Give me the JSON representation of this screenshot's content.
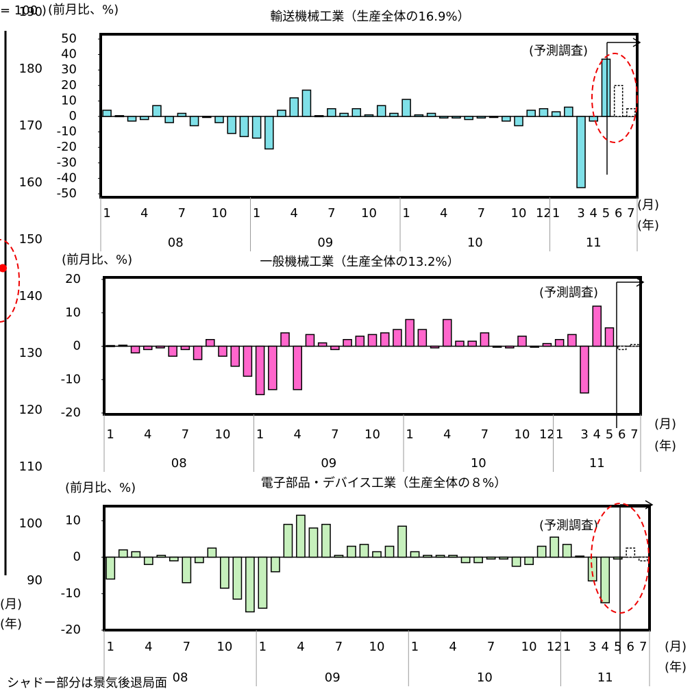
{
  "chart_data": [
    {
      "type": "line",
      "title": "= 100 )",
      "ylim": [
        90,
        190
      ],
      "yticks": [
        90,
        100,
        110,
        120,
        130,
        140,
        150,
        160,
        170,
        180,
        190
      ],
      "x_label": "(月)",
      "x_group_label": "(年)",
      "series": [
        {
          "color": "#ff0000",
          "values": [
            145
          ]
        }
      ]
    },
    {
      "type": "bar",
      "title": "輸送機械工業（生産全体の16.9%）",
      "y_label": "(前月比、%)",
      "note": "(予測調査)",
      "ylim": [
        -50,
        50
      ],
      "yticks": [
        -50,
        -40,
        -30,
        -20,
        -10,
        0,
        10,
        20,
        30,
        40,
        50
      ],
      "x_label": "(月)",
      "x_group_label": "(年)",
      "years": [
        "08",
        "09",
        "10",
        "11"
      ],
      "categories": [
        "1",
        null,
        null,
        "4",
        null,
        null,
        "7",
        null,
        null,
        "10",
        null,
        null,
        "1",
        null,
        null,
        "4",
        null,
        null,
        "7",
        null,
        null,
        "10",
        null,
        null,
        "1",
        null,
        null,
        "4",
        null,
        null,
        "7",
        null,
        null,
        "10",
        null,
        "12",
        "1",
        null,
        "3",
        "4",
        "5",
        "6",
        "7"
      ],
      "series": [
        {
          "color": "#7fe0e8",
          "values": [
            4,
            0.5,
            -3,
            -2,
            7,
            -4,
            2,
            -6,
            0,
            -4,
            -11,
            -13,
            -14,
            -21,
            4,
            12,
            17,
            0.5,
            5,
            2,
            5,
            1,
            7,
            2,
            11,
            1,
            2,
            -1,
            -1,
            -2,
            -1,
            0,
            -3,
            -6,
            4,
            5,
            3,
            6,
            -46,
            -3,
            37,
            null,
            null
          ]
        },
        {
          "color": "#ffffff",
          "values": [
            null,
            null,
            null,
            null,
            null,
            null,
            null,
            null,
            null,
            null,
            null,
            null,
            null,
            null,
            null,
            null,
            null,
            null,
            null,
            null,
            null,
            null,
            null,
            null,
            null,
            null,
            null,
            null,
            null,
            null,
            null,
            null,
            null,
            null,
            null,
            null,
            null,
            null,
            null,
            null,
            null,
            20,
            5
          ]
        }
      ]
    },
    {
      "type": "bar",
      "title": "一般機械工業（生産全体の13.2%）",
      "y_label": "(前月比、%)",
      "note": "(予測調査)",
      "ylim": [
        -20,
        20
      ],
      "yticks": [
        -20,
        -10,
        0,
        10,
        20
      ],
      "x_label": "(月)",
      "x_group_label": "(年)",
      "years": [
        "08",
        "09",
        "10",
        "11"
      ],
      "categories": [
        "1",
        null,
        null,
        "4",
        null,
        null,
        "7",
        null,
        null,
        "10",
        null,
        null,
        "1",
        null,
        null,
        "4",
        null,
        null,
        "7",
        null,
        null,
        "10",
        null,
        null,
        "1",
        null,
        null,
        "4",
        null,
        null,
        "7",
        null,
        null,
        "10",
        null,
        "12",
        "1",
        null,
        "3",
        "4",
        "5",
        "6",
        "7"
      ],
      "series": [
        {
          "color": "#ff66cc",
          "values": [
            0.2,
            0.3,
            -2,
            -1,
            -0.5,
            -3,
            -1,
            -4,
            2,
            -3,
            -6,
            -9,
            -14.5,
            -13,
            4,
            -13,
            3.5,
            1,
            -1,
            2,
            3,
            3.5,
            4,
            5,
            8,
            5,
            -0.5,
            8,
            1.5,
            1.5,
            4,
            0,
            -0.5,
            3,
            0,
            0.8,
            2,
            3.5,
            -14,
            12,
            5.5,
            null,
            null
          ]
        },
        {
          "color": "#ffffff",
          "values": [
            null,
            null,
            null,
            null,
            null,
            null,
            null,
            null,
            null,
            null,
            null,
            null,
            null,
            null,
            null,
            null,
            null,
            null,
            null,
            null,
            null,
            null,
            null,
            null,
            null,
            null,
            null,
            null,
            null,
            null,
            null,
            null,
            null,
            null,
            null,
            null,
            null,
            null,
            null,
            null,
            null,
            -1,
            0.5
          ]
        }
      ]
    },
    {
      "type": "bar",
      "title": "電子部品・デバイス工業（生産全体の８%）",
      "y_label": "(前月比、%)",
      "note": "(予測調査)",
      "ylim": [
        -20,
        14
      ],
      "yticks": [
        -20,
        -10,
        0,
        10
      ],
      "x_label": "(月)",
      "x_group_label": "(年)",
      "years": [
        "08",
        "09",
        "10",
        "11"
      ],
      "categories": [
        "1",
        null,
        null,
        "4",
        null,
        null,
        "7",
        null,
        null,
        "10",
        null,
        null,
        "1",
        null,
        null,
        "4",
        null,
        null,
        "7",
        null,
        null,
        "10",
        null,
        null,
        "1",
        null,
        null,
        "4",
        null,
        null,
        "7",
        null,
        null,
        "10",
        null,
        "12",
        "1",
        null,
        "3",
        "4",
        "5",
        "6",
        "7"
      ],
      "series": [
        {
          "color": "#c6f0bc",
          "values": [
            -6,
            2,
            1.5,
            -2,
            0.5,
            -1,
            -7,
            -1.5,
            2.5,
            -8.5,
            -11.5,
            -15,
            -14,
            -4,
            9,
            11.5,
            8,
            9,
            0.5,
            3,
            3.5,
            1.5,
            3,
            8.5,
            1.5,
            0.5,
            0.5,
            0.5,
            -1.5,
            -1.5,
            -0.5,
            -0.5,
            -2.5,
            -2,
            3,
            5.5,
            3.5,
            0.3,
            -6.5,
            -12.5,
            -0.5,
            null,
            null
          ]
        },
        {
          "color": "#ffffff",
          "values": [
            null,
            null,
            null,
            null,
            null,
            null,
            null,
            null,
            null,
            null,
            null,
            null,
            null,
            null,
            null,
            null,
            null,
            null,
            null,
            null,
            null,
            null,
            null,
            null,
            null,
            null,
            null,
            null,
            null,
            null,
            null,
            null,
            null,
            null,
            null,
            null,
            null,
            null,
            null,
            null,
            null,
            2.5,
            -1
          ]
        }
      ]
    }
  ],
  "footnote": "シャドー部分は景気後退局面"
}
